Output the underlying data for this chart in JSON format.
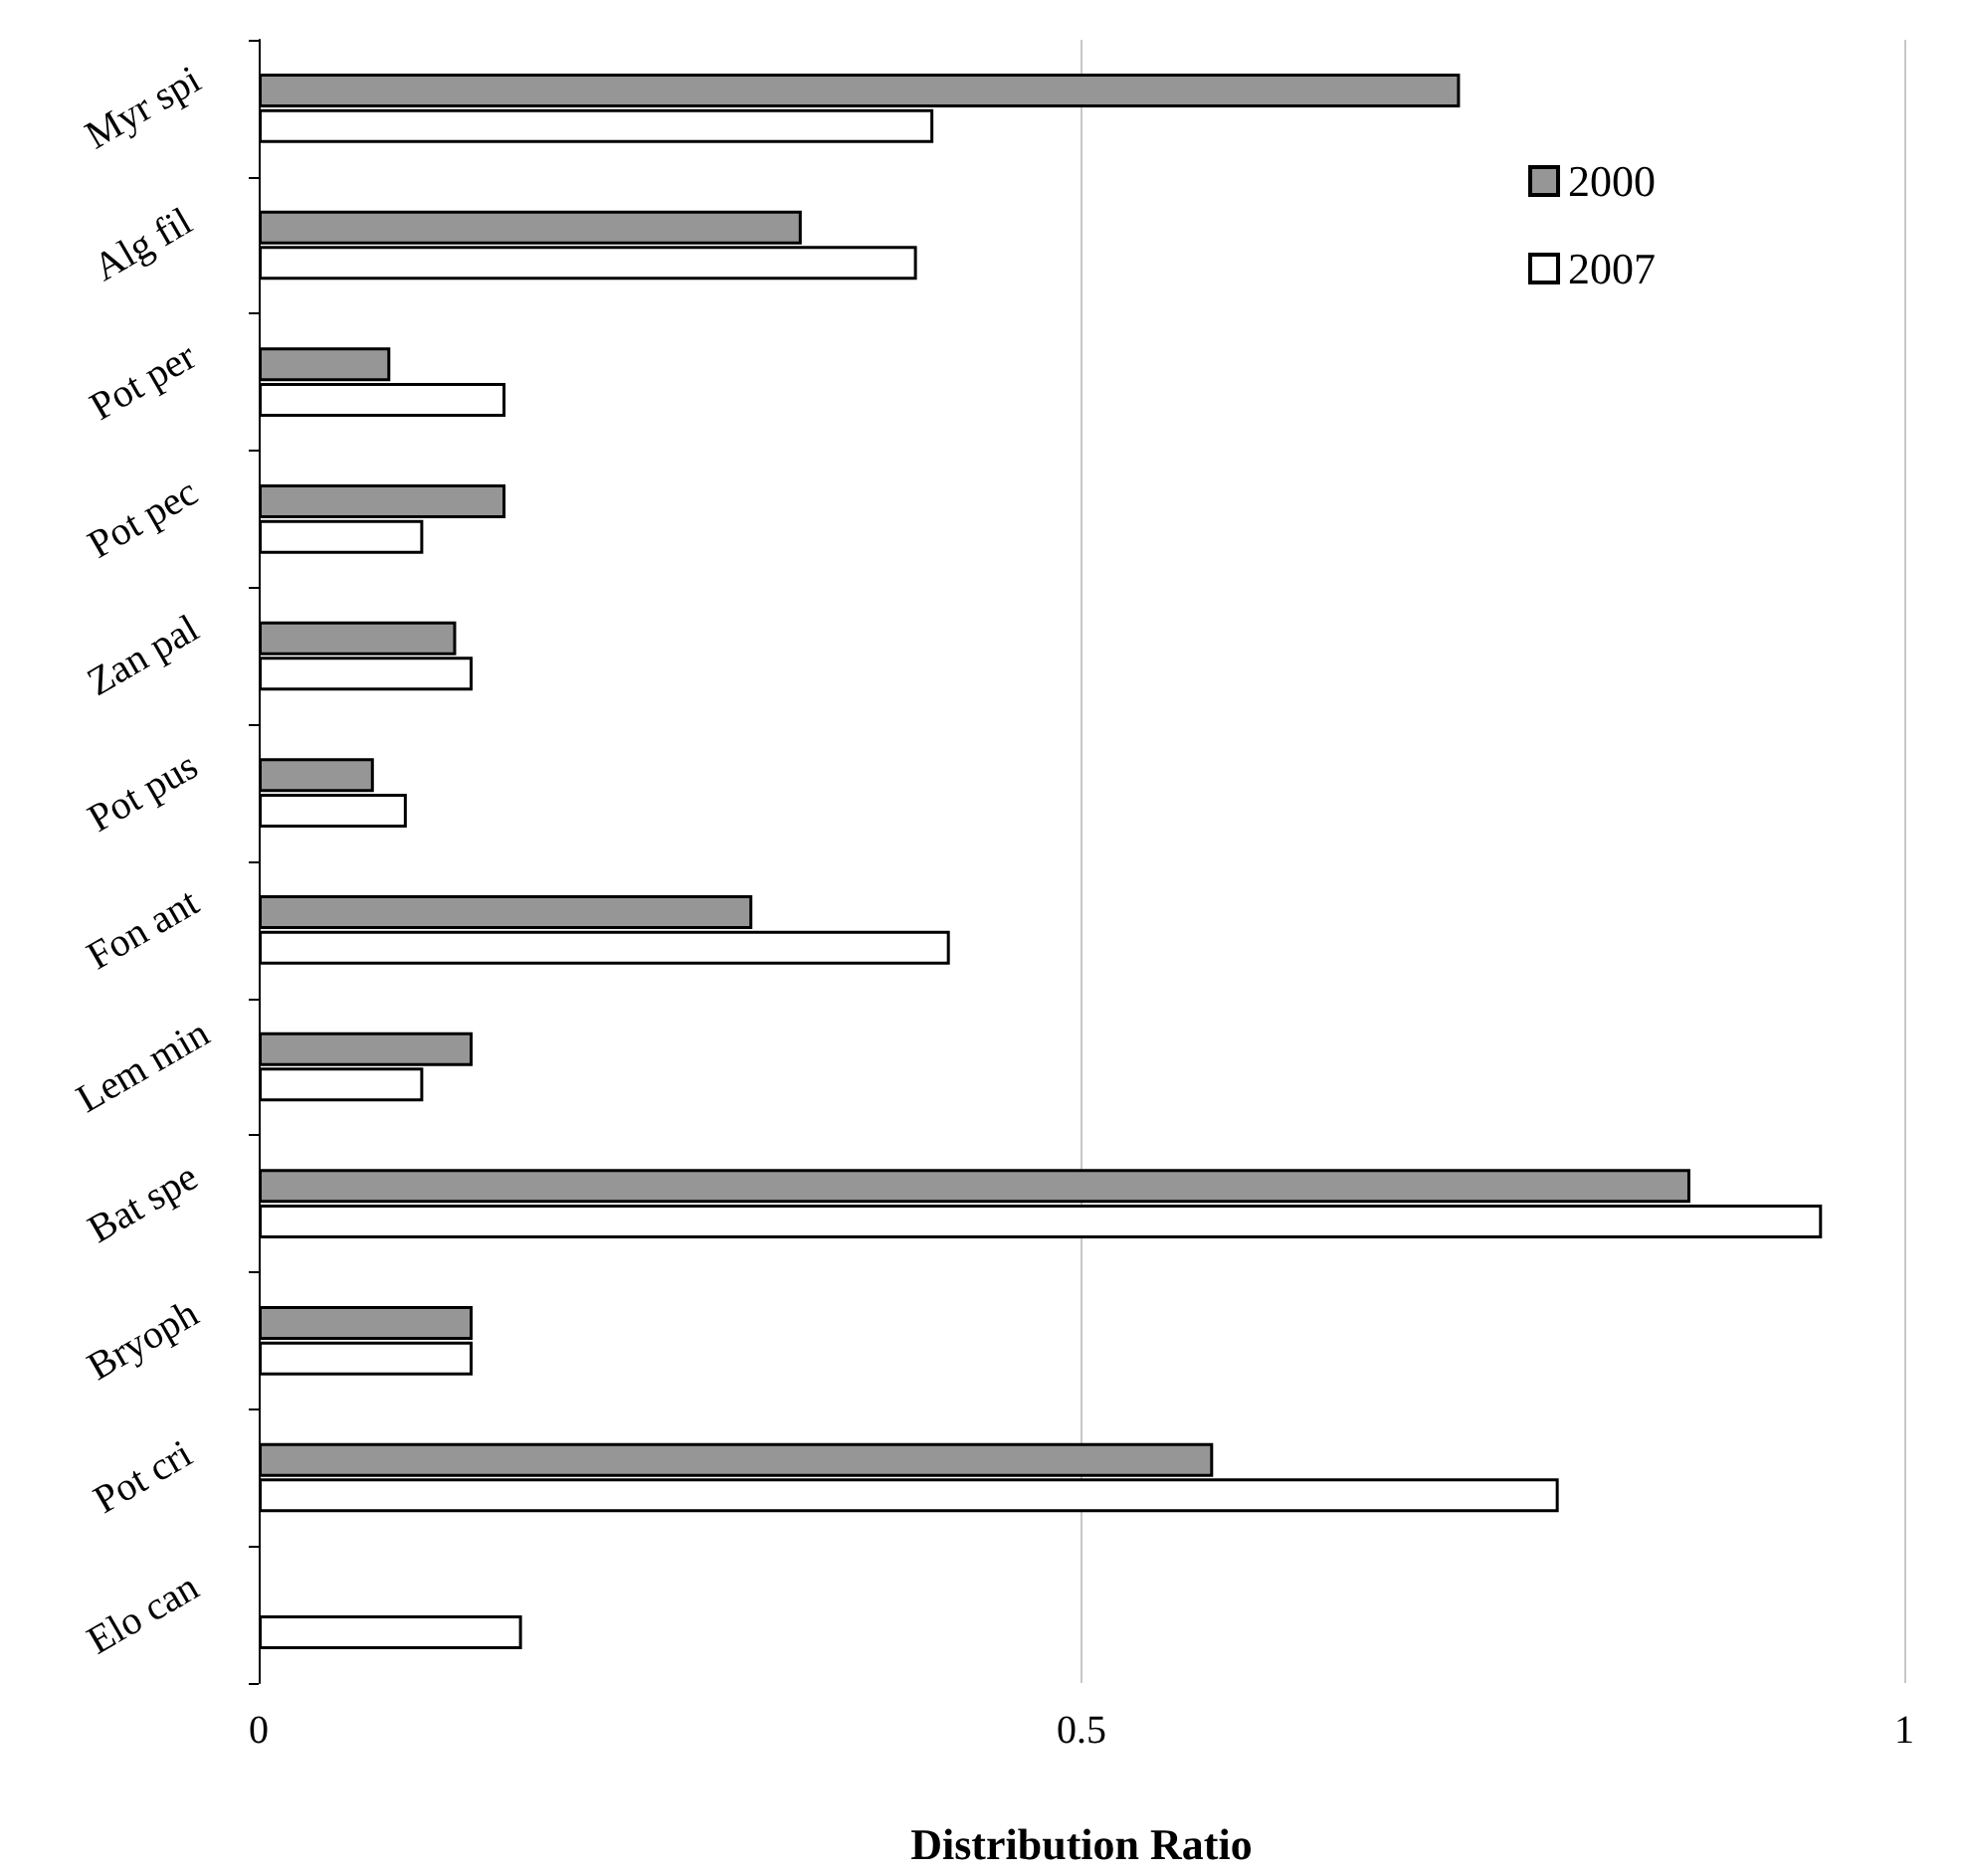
{
  "chart_data": {
    "type": "bar",
    "orientation": "horizontal",
    "xlabel": "Distribution Ratio",
    "categories": [
      "Myr spi",
      "Alg fil",
      "Pot per",
      "Pot pec",
      "Zan pal",
      "Pot pus",
      "Fon ant",
      "Lem min",
      "Bat spe",
      "Bryoph",
      "Pot cri",
      "Elo can"
    ],
    "series": [
      {
        "name": "2000",
        "color": "#969696",
        "values": [
          0.73,
          0.33,
          0.08,
          0.15,
          0.12,
          0.07,
          0.3,
          0.13,
          0.87,
          0.13,
          0.58,
          null
        ]
      },
      {
        "name": "2007",
        "color": "#ffffff",
        "values": [
          0.41,
          0.4,
          0.15,
          0.1,
          0.13,
          0.09,
          0.42,
          0.1,
          0.95,
          0.13,
          0.79,
          0.16
        ]
      }
    ],
    "xlim": [
      0,
      1
    ],
    "xticks": [
      0,
      0.5,
      1
    ],
    "grid": "x",
    "legend": "top right"
  }
}
